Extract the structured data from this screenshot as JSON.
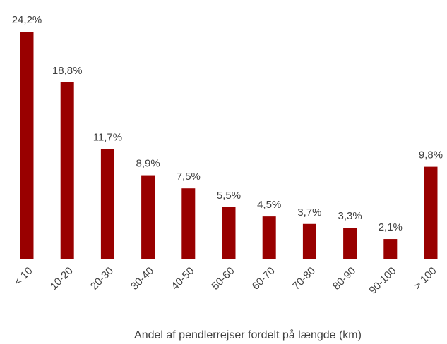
{
  "chart_data": {
    "type": "bar",
    "x_label": "Andel af pendlerrejser fordelt på længde (km)",
    "categories": [
      "< 10",
      "10-20",
      "20-30",
      "30-40",
      "40-50",
      "50-60",
      "60-70",
      "70-80",
      "80-90",
      "90-100",
      "> 100"
    ],
    "values": [
      24.2,
      18.8,
      11.7,
      8.9,
      7.5,
      5.5,
      4.5,
      3.7,
      3.3,
      2.1,
      9.8
    ],
    "value_labels": [
      "24,2%",
      "18,8%",
      "11,7%",
      "8,9%",
      "7,5%",
      "5,5%",
      "4,5%",
      "3,7%",
      "3,3%",
      "2,1%",
      "9,8%"
    ],
    "color": "#990000"
  }
}
